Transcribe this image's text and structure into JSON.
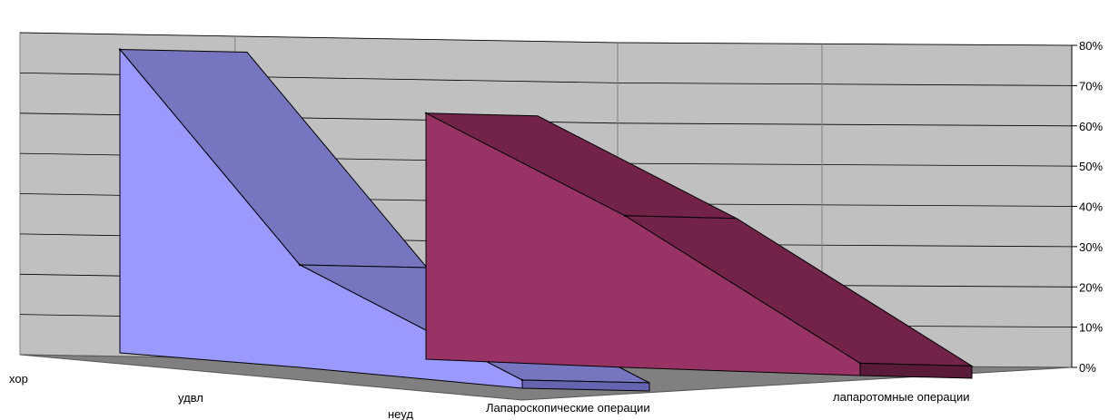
{
  "colors": {
    "background": "#ffffff",
    "wall": "#c0c0c0",
    "floor": "#808080",
    "grid": "#000000",
    "series1_front": "#9999ff",
    "series1_top": "#7575c0",
    "series1_end": "#6464b0",
    "series2_front": "#993366",
    "series2_top": "#73234a",
    "series2_end": "#5a1a3a"
  },
  "chart_data": {
    "type": "area",
    "view": "3d",
    "title": "",
    "xlabel": "",
    "ylabel": "",
    "y_axis_position": "right",
    "grid": true,
    "ylim": [
      0,
      0.8
    ],
    "y_ticks": [
      0,
      0.1,
      0.2,
      0.3,
      0.4,
      0.5,
      0.6,
      0.7,
      0.8
    ],
    "y_tick_labels": [
      "0%",
      "10%",
      "20%",
      "30%",
      "40%",
      "50%",
      "60%",
      "70%",
      "80%"
    ],
    "categories": [
      "хор",
      "удвл",
      "неуд"
    ],
    "series": [
      {
        "name": "Лапароскопические операции",
        "values": [
          0.74,
          0.25,
          0.02
        ]
      },
      {
        "name": "лапаротомные операции",
        "values": [
          0.6,
          0.37,
          0.03
        ]
      }
    ]
  }
}
